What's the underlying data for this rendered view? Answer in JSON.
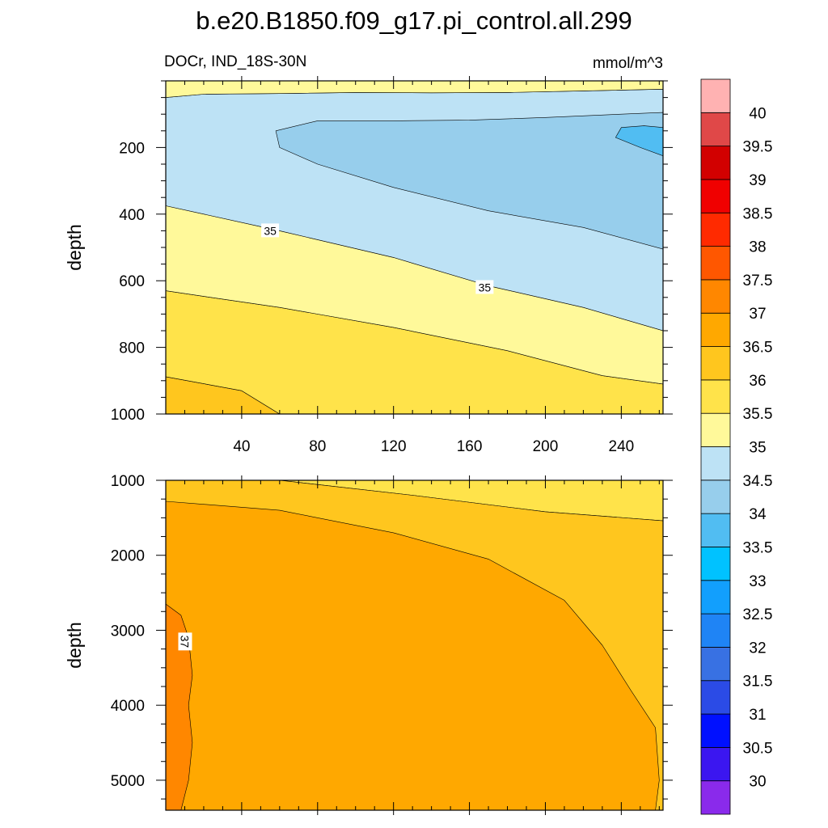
{
  "title": "b.e20.B1850.f09_g17.pi_control.all.299",
  "subtitle_left": "DOCr, IND_18S-30N",
  "subtitle_right": "mmol/m^3",
  "chart_data": [
    {
      "type": "contour",
      "panel": "upper",
      "ylabel": "depth",
      "xlim": [
        0,
        262
      ],
      "ylim": [
        0,
        1000
      ],
      "y_inverted": true,
      "xticks": [
        40,
        80,
        120,
        160,
        200,
        240
      ],
      "yticks": [
        200,
        400,
        600,
        800,
        1000
      ],
      "contour_labels": [
        {
          "text": "35",
          "x": 55,
          "y": 450
        },
        {
          "text": "35",
          "x": 168,
          "y": 620
        }
      ],
      "regions": [
        {
          "level": 36.25,
          "color": "#ffc61e",
          "points": [
            [
              0,
              1000
            ],
            [
              0,
              888
            ],
            [
              40,
              930
            ],
            [
              60,
              1000
            ]
          ]
        },
        {
          "level": 35.75,
          "color": "#ffe34a",
          "points": [
            [
              0,
              888
            ],
            [
              0,
              630
            ],
            [
              60,
              680
            ],
            [
              120,
              740
            ],
            [
              180,
              810
            ],
            [
              230,
              885
            ],
            [
              262,
              910
            ],
            [
              262,
              1000
            ],
            [
              60,
              1000
            ],
            [
              40,
              930
            ]
          ]
        },
        {
          "level": 35.25,
          "color": "#fff99a",
          "points": [
            [
              0,
              630
            ],
            [
              0,
              375
            ],
            [
              60,
              450
            ],
            [
              120,
              530
            ],
            [
              170,
              615
            ],
            [
              220,
              680
            ],
            [
              262,
              750
            ],
            [
              262,
              910
            ],
            [
              230,
              885
            ],
            [
              180,
              810
            ],
            [
              120,
              740
            ],
            [
              60,
              680
            ]
          ]
        },
        {
          "level": 34.75,
          "color": "#bde2f5",
          "points": [
            [
              0,
              375
            ],
            [
              0,
              50
            ],
            [
              20,
              40
            ],
            [
              60,
              38
            ],
            [
              100,
              35
            ],
            [
              140,
              36
            ],
            [
              180,
              35
            ],
            [
              220,
              30
            ],
            [
              262,
              25
            ],
            [
              262,
              750
            ],
            [
              220,
              680
            ],
            [
              170,
              615
            ],
            [
              120,
              530
            ],
            [
              60,
              450
            ]
          ]
        },
        {
          "level": 34.25,
          "color": "#97ceec",
          "points": [
            [
              58,
              150
            ],
            [
              80,
              120
            ],
            [
              120,
              120
            ],
            [
              160,
              118
            ],
            [
              200,
              110
            ],
            [
              240,
              100
            ],
            [
              262,
              95
            ],
            [
              262,
              505
            ],
            [
              220,
              440
            ],
            [
              170,
              390
            ],
            [
              120,
              320
            ],
            [
              80,
              250
            ],
            [
              60,
              200
            ]
          ]
        },
        {
          "level": 33.75,
          "color": "#51bdf2",
          "points": [
            [
              262,
              140
            ],
            [
              252,
              135
            ],
            [
              240,
              140
            ],
            [
              237,
              170
            ],
            [
              250,
              200
            ],
            [
              262,
              225
            ]
          ]
        },
        {
          "level": 35.25,
          "color": "#fff99a",
          "points": [
            [
              0,
              0
            ],
            [
              262,
              0
            ],
            [
              262,
              25
            ],
            [
              220,
              30
            ],
            [
              180,
              35
            ],
            [
              140,
              36
            ],
            [
              100,
              35
            ],
            [
              60,
              38
            ],
            [
              20,
              40
            ],
            [
              0,
              50
            ]
          ]
        }
      ]
    },
    {
      "type": "contour",
      "panel": "lower",
      "ylabel": "depth",
      "xlim": [
        0,
        262
      ],
      "ylim": [
        1000,
        5400
      ],
      "y_inverted": true,
      "yticks": [
        1000,
        2000,
        3000,
        4000,
        5000
      ],
      "contour_labels": [
        {
          "text": "37",
          "x": 10,
          "y": 3150,
          "rotate": 90
        }
      ],
      "regions": [
        {
          "level": 35.75,
          "color": "#ffe34a",
          "points": [
            [
              60,
              1000
            ],
            [
              262,
              1000
            ],
            [
              262,
              1540
            ],
            [
              200,
              1420
            ],
            [
              130,
              1200
            ]
          ]
        },
        {
          "level": 36.25,
          "color": "#ffc61e",
          "points": [
            [
              0,
              1000
            ],
            [
              60,
              1000
            ],
            [
              130,
              1200
            ],
            [
              200,
              1420
            ],
            [
              262,
              1540
            ],
            [
              262,
              5400
            ],
            [
              0,
              5400
            ]
          ]
        },
        {
          "level": 36.75,
          "color": "#ffa800",
          "points": [
            [
              0,
              1280
            ],
            [
              60,
              1400
            ],
            [
              120,
              1700
            ],
            [
              170,
              2050
            ],
            [
              210,
              2600
            ],
            [
              230,
              3200
            ],
            [
              245,
              3800
            ],
            [
              258,
              4300
            ],
            [
              260,
              5000
            ],
            [
              258,
              5400
            ],
            [
              0,
              5400
            ]
          ]
        },
        {
          "level": 37.25,
          "color": "#ff8700",
          "points": [
            [
              0,
              2650
            ],
            [
              8,
              2800
            ],
            [
              12,
              3100
            ],
            [
              14,
              3600
            ],
            [
              12,
              4000
            ],
            [
              14,
              4500
            ],
            [
              12,
              5000
            ],
            [
              8,
              5400
            ],
            [
              0,
              5400
            ]
          ]
        }
      ]
    }
  ],
  "colorbar": {
    "colors": [
      "#8a2aeb",
      "#3b16f0",
      "#0010ff",
      "#2b4be6",
      "#3871e3",
      "#1f84f5",
      "#129ffd",
      "#00c2ff",
      "#51bdf2",
      "#97ceec",
      "#bde2f5",
      "#fff99a",
      "#ffe34a",
      "#ffc61e",
      "#ffa800",
      "#ff8700",
      "#ff5700",
      "#ff2a00",
      "#f00000",
      "#d20000",
      "#e04848",
      "#ffb2b2"
    ],
    "labels": [
      "30",
      "30.5",
      "31",
      "31.5",
      "32",
      "32.5",
      "33",
      "33.5",
      "34",
      "34.5",
      "35",
      "35.5",
      "36",
      "36.5",
      "37",
      "37.5",
      "38",
      "38.5",
      "39",
      "39.5",
      "40"
    ]
  }
}
